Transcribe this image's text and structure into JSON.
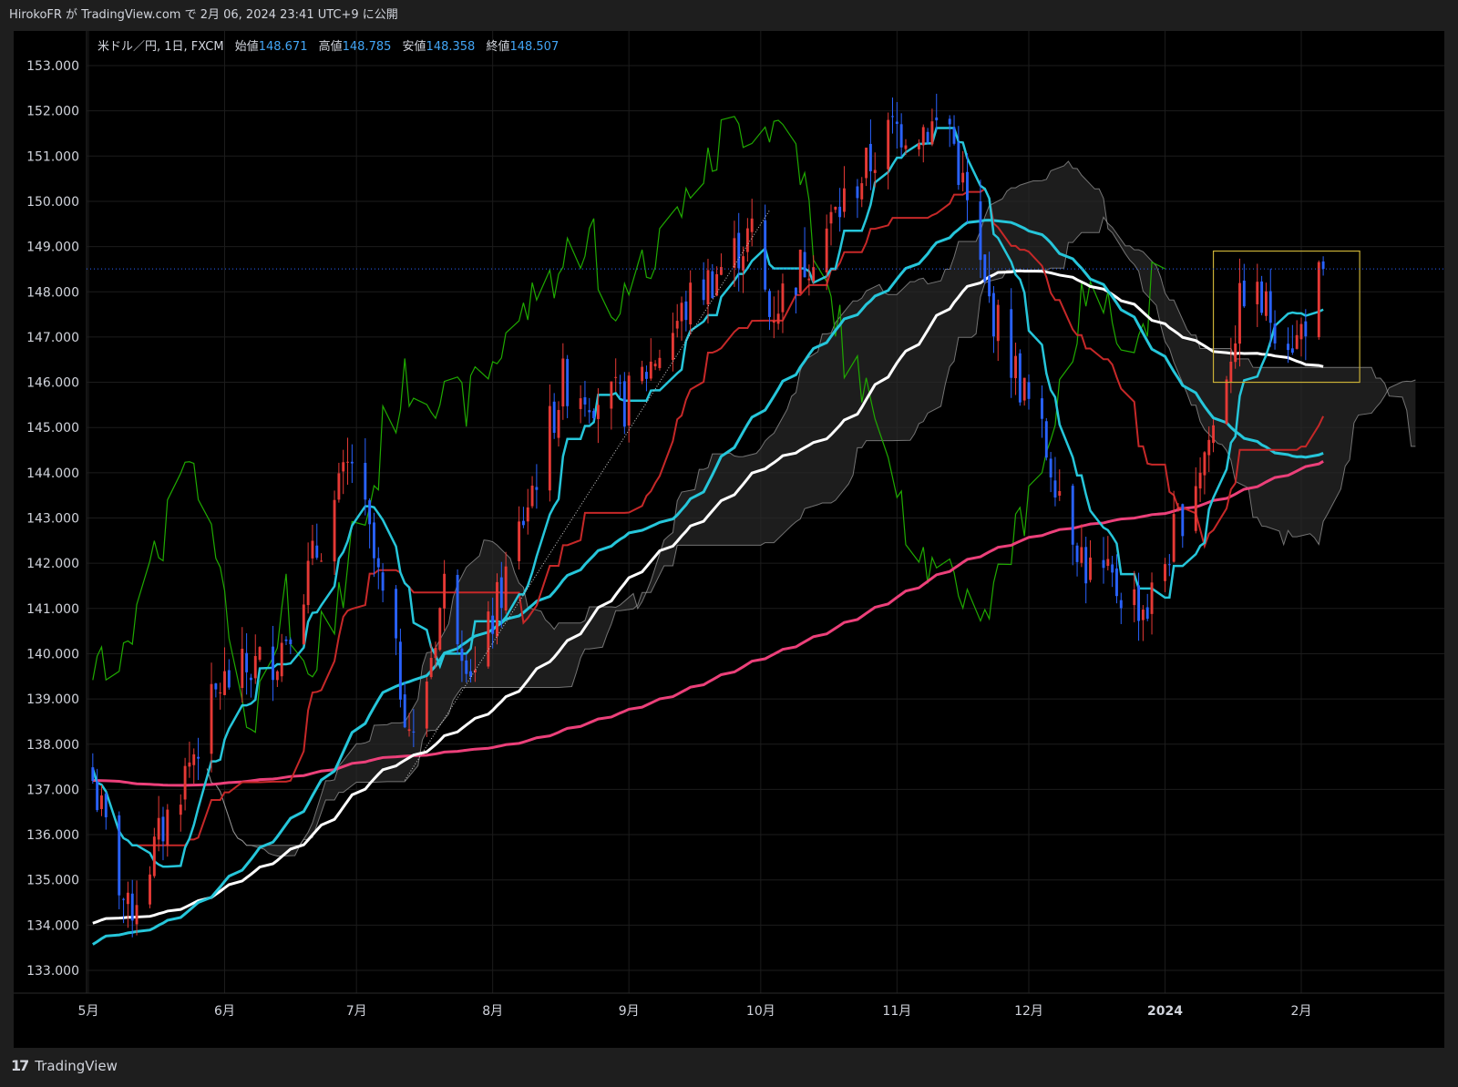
{
  "header": {
    "publish_text": "HirokoFR が TradingView.com で 2月 06, 2024 23:41 UTC+9 に公開"
  },
  "legend": {
    "symbol": "米ドル／円, 1日, FXCM",
    "open_label": "始値",
    "open_value": "148.671",
    "high_label": "高値",
    "high_value": "148.785",
    "low_label": "安値",
    "low_value": "148.358",
    "close_label": "終値",
    "close_value": "148.507"
  },
  "footer": {
    "brand": "TradingView",
    "logo_glyph": "17"
  },
  "colors": {
    "background": "#000000",
    "grid": "#1c1c1c",
    "up_candle": "#e53935",
    "down_candle": "#2962ff",
    "tenkan": "#26c6da",
    "kijun": "#c62828",
    "chikou": "#1faa00",
    "sma_fast": "#26c6da",
    "sma_mid": "#ffffff",
    "sma_slow": "#ec407a",
    "cloud_fill": "#2a2a2a",
    "cloud_edge": "#9e9e9e",
    "highlight_box": "#c9b037",
    "price_line": "#2962ff"
  },
  "chart_data": {
    "type": "candlestick",
    "symbol": "米ドル／円, 1日, FXCM",
    "ylim": [
      132.5,
      153.8
    ],
    "y_ticks": [
      "133.000",
      "134.000",
      "135.000",
      "136.000",
      "137.000",
      "138.000",
      "139.000",
      "140.000",
      "141.000",
      "142.000",
      "143.000",
      "144.000",
      "145.000",
      "146.000",
      "147.000",
      "148.000",
      "149.000",
      "150.000",
      "151.000",
      "152.000",
      "153.000"
    ],
    "x_ticks": [
      {
        "label": "5月",
        "date": "2023-05-01"
      },
      {
        "label": "6月",
        "date": "2023-06-01"
      },
      {
        "label": "7月",
        "date": "2023-07-01"
      },
      {
        "label": "8月",
        "date": "2023-08-01"
      },
      {
        "label": "9月",
        "date": "2023-09-01"
      },
      {
        "label": "10月",
        "date": "2023-10-01"
      },
      {
        "label": "11月",
        "date": "2023-11-01"
      },
      {
        "label": "12月",
        "date": "2023-12-01"
      },
      {
        "label": "2024",
        "date": "2024-01-01"
      },
      {
        "label": "2月",
        "date": "2024-02-01"
      }
    ],
    "last_close": 148.507,
    "key_closes": [
      {
        "date": "2023-05-02",
        "close": 137.2
      },
      {
        "date": "2023-05-10",
        "close": 134.2
      },
      {
        "date": "2023-05-31",
        "close": 139.3
      },
      {
        "date": "2023-06-13",
        "close": 140.0
      },
      {
        "date": "2023-06-30",
        "close": 144.3
      },
      {
        "date": "2023-07-14",
        "close": 138.0
      },
      {
        "date": "2023-07-21",
        "close": 141.5
      },
      {
        "date": "2023-07-28",
        "close": 139.5
      },
      {
        "date": "2023-08-04",
        "close": 141.7
      },
      {
        "date": "2023-08-17",
        "close": 146.0
      },
      {
        "date": "2023-08-31",
        "close": 145.5
      },
      {
        "date": "2023-09-15",
        "close": 147.8
      },
      {
        "date": "2023-09-29",
        "close": 149.3
      },
      {
        "date": "2023-10-03",
        "close": 147.5
      },
      {
        "date": "2023-10-31",
        "close": 151.6
      },
      {
        "date": "2023-11-13",
        "close": 151.7
      },
      {
        "date": "2023-11-21",
        "close": 148.0
      },
      {
        "date": "2023-12-07",
        "close": 144.0
      },
      {
        "date": "2023-12-14",
        "close": 141.9
      },
      {
        "date": "2023-12-28",
        "close": 141.0
      },
      {
        "date": "2024-01-12",
        "close": 145.0
      },
      {
        "date": "2024-01-19",
        "close": 148.1
      },
      {
        "date": "2024-01-31",
        "close": 146.9
      },
      {
        "date": "2024-02-06",
        "close": 148.507
      }
    ],
    "indicators": [
      "Ichimoku (tenkan, kijun, chikou, cloud)",
      "SMA fast",
      "SMA mid",
      "SMA slow"
    ],
    "highlight": {
      "from": "2024-01-12",
      "to": "2024-02-06",
      "low": 146.0,
      "high": 148.9
    },
    "grid": true
  }
}
